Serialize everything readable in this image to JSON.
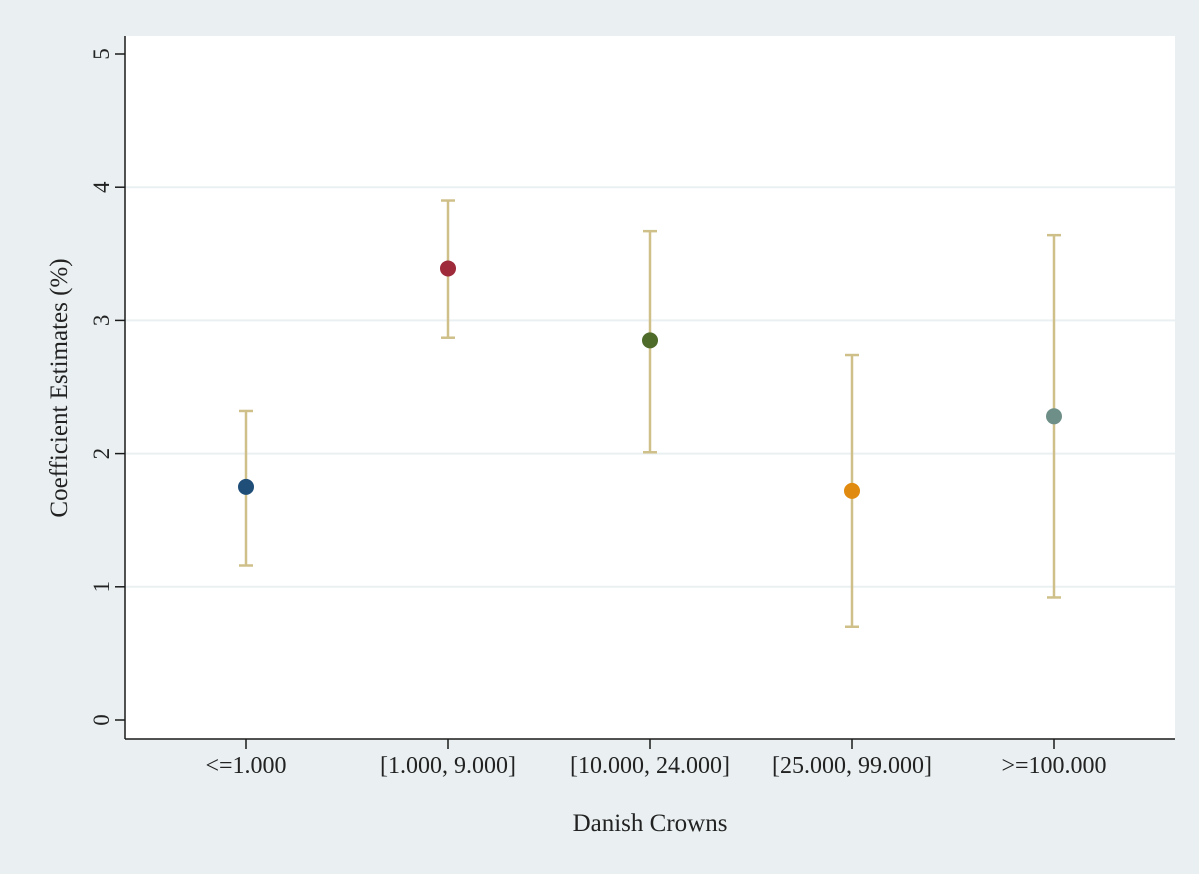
{
  "chart_data": {
    "type": "scatter",
    "subtype": "point-estimate-with-confidence-intervals",
    "title": "",
    "xlabel": "Danish Crowns",
    "ylabel": "Coefficient Estimates (%)",
    "ylim": [
      0,
      5
    ],
    "yticks": [
      "0",
      "1",
      "2",
      "3",
      "4",
      "5"
    ],
    "grid": "horizontal",
    "categories": [
      "<=1.000",
      "[1.000, 9.000]",
      "[10.000, 24.000]",
      "[25.000, 99.000]",
      ">=100.000"
    ],
    "values": [
      1.75,
      3.39,
      2.85,
      1.72,
      2.28
    ],
    "ci_lower": [
      1.16,
      2.87,
      2.01,
      0.7,
      0.92
    ],
    "ci_upper": [
      2.32,
      3.9,
      3.67,
      2.74,
      3.64
    ],
    "point_colors": [
      "#1f4e79",
      "#9e2a3a",
      "#4f6b2a",
      "#e08a0f",
      "#6e8f87"
    ],
    "errorbar_color": "#cfc08a",
    "background_color": "#eaf0f2",
    "plot_background_color": "#ffffff",
    "grid_color": "#eaf0f2"
  }
}
